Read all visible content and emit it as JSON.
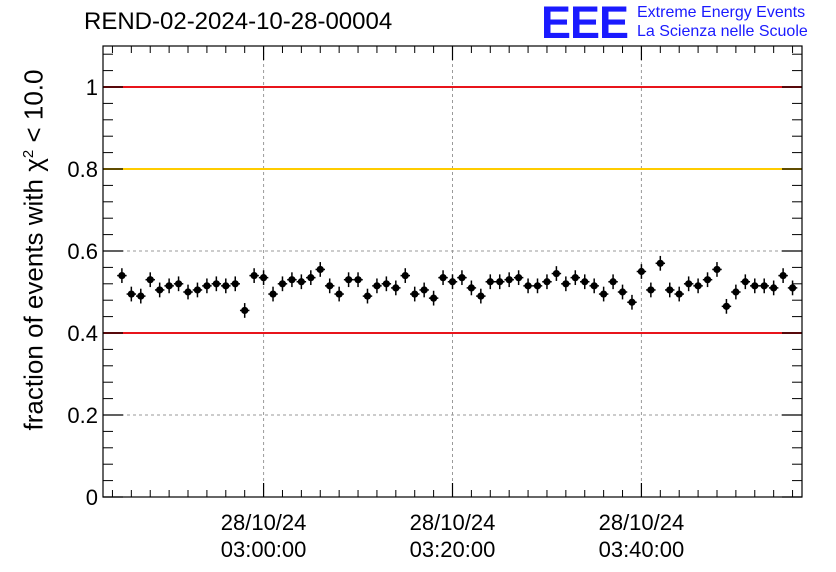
{
  "title": "REND-02-2024-10-28-00004",
  "logo": {
    "mark": "EEE",
    "line1": "Extreme Energy Events",
    "line2": "La Scienza nelle Scuole"
  },
  "colors": {
    "upper_line": "#e8141b",
    "warn_line": "#ffcc00",
    "lower_line": "#e8141b",
    "markers": "#000000",
    "logo": "#1a1aff"
  },
  "chart_data": {
    "type": "scatter",
    "title": "REND-02-2024-10-28-00004",
    "ylabel": {
      "prefix": "fraction of events with ",
      "symbol": "χ",
      "superscript": "2",
      "suffix": " < 10.0"
    },
    "ylim": [
      0,
      1.1
    ],
    "yticks": [
      "0",
      "0.2",
      "0.4",
      "0.6",
      "0.8",
      "1"
    ],
    "xticks": [
      {
        "date": "28/10/24",
        "time": "03:00:00"
      },
      {
        "date": "28/10/24",
        "time": "03:20:00"
      },
      {
        "date": "28/10/24",
        "time": "03:40:00"
      }
    ],
    "grid": true,
    "reference_lines": [
      {
        "y": 1.0,
        "color": "#e8141b"
      },
      {
        "y": 0.8,
        "color": "#ffcc00"
      },
      {
        "y": 0.4,
        "color": "#e8141b"
      }
    ],
    "x_minutes": [
      -15,
      -14,
      -13,
      -12,
      -11,
      -10,
      -9,
      -8,
      -7,
      -6,
      -5,
      -4,
      -3,
      -2,
      -1,
      0,
      1,
      2,
      3,
      4,
      5,
      6,
      7,
      8,
      9,
      10,
      11,
      12,
      13,
      14,
      15,
      16,
      17,
      18,
      19,
      20,
      21,
      22,
      23,
      24,
      25,
      26,
      27,
      28,
      29,
      30,
      31,
      32,
      33,
      34,
      35,
      36,
      37,
      38,
      39,
      40,
      41,
      42,
      43,
      44,
      45,
      46,
      47,
      48,
      49,
      50,
      51,
      52,
      53,
      54,
      55,
      56
    ],
    "x": [
      "02:45",
      "02:46",
      "02:47",
      "02:48",
      "02:49",
      "02:50",
      "02:51",
      "02:52",
      "02:53",
      "02:54",
      "02:55",
      "02:56",
      "02:57",
      "02:58",
      "02:59",
      "03:00",
      "03:01",
      "03:02",
      "03:03",
      "03:04",
      "03:05",
      "03:06",
      "03:07",
      "03:08",
      "03:09",
      "03:10",
      "03:11",
      "03:12",
      "03:13",
      "03:14",
      "03:15",
      "03:16",
      "03:17",
      "03:18",
      "03:19",
      "03:20",
      "03:21",
      "03:22",
      "03:23",
      "03:24",
      "03:25",
      "03:26",
      "03:27",
      "03:28",
      "03:29",
      "03:30",
      "03:31",
      "03:32",
      "03:33",
      "03:34",
      "03:35",
      "03:36",
      "03:37",
      "03:38",
      "03:39",
      "03:40",
      "03:41",
      "03:42",
      "03:43",
      "03:44",
      "03:45",
      "03:46",
      "03:47",
      "03:48",
      "03:49",
      "03:50",
      "03:51",
      "03:52",
      "03:53",
      "03:54",
      "03:55",
      "03:56"
    ],
    "y": [
      0.54,
      0.495,
      0.49,
      0.53,
      0.505,
      0.515,
      0.52,
      0.5,
      0.505,
      0.515,
      0.52,
      0.515,
      0.52,
      0.455,
      0.54,
      0.535,
      0.495,
      0.52,
      0.53,
      0.525,
      0.535,
      0.555,
      0.515,
      0.495,
      0.53,
      0.53,
      0.49,
      0.515,
      0.52,
      0.51,
      0.54,
      0.495,
      0.505,
      0.485,
      0.535,
      0.525,
      0.535,
      0.51,
      0.49,
      0.525,
      0.525,
      0.53,
      0.535,
      0.515,
      0.515,
      0.525,
      0.545,
      0.52,
      0.535,
      0.525,
      0.515,
      0.495,
      0.525,
      0.5,
      0.475,
      0.55,
      0.505,
      0.57,
      0.505,
      0.495,
      0.52,
      0.515,
      0.53,
      0.555,
      0.465,
      0.5,
      0.525,
      0.515,
      0.515,
      0.51,
      0.54,
      0.51
    ],
    "yerr": 0.018
  }
}
